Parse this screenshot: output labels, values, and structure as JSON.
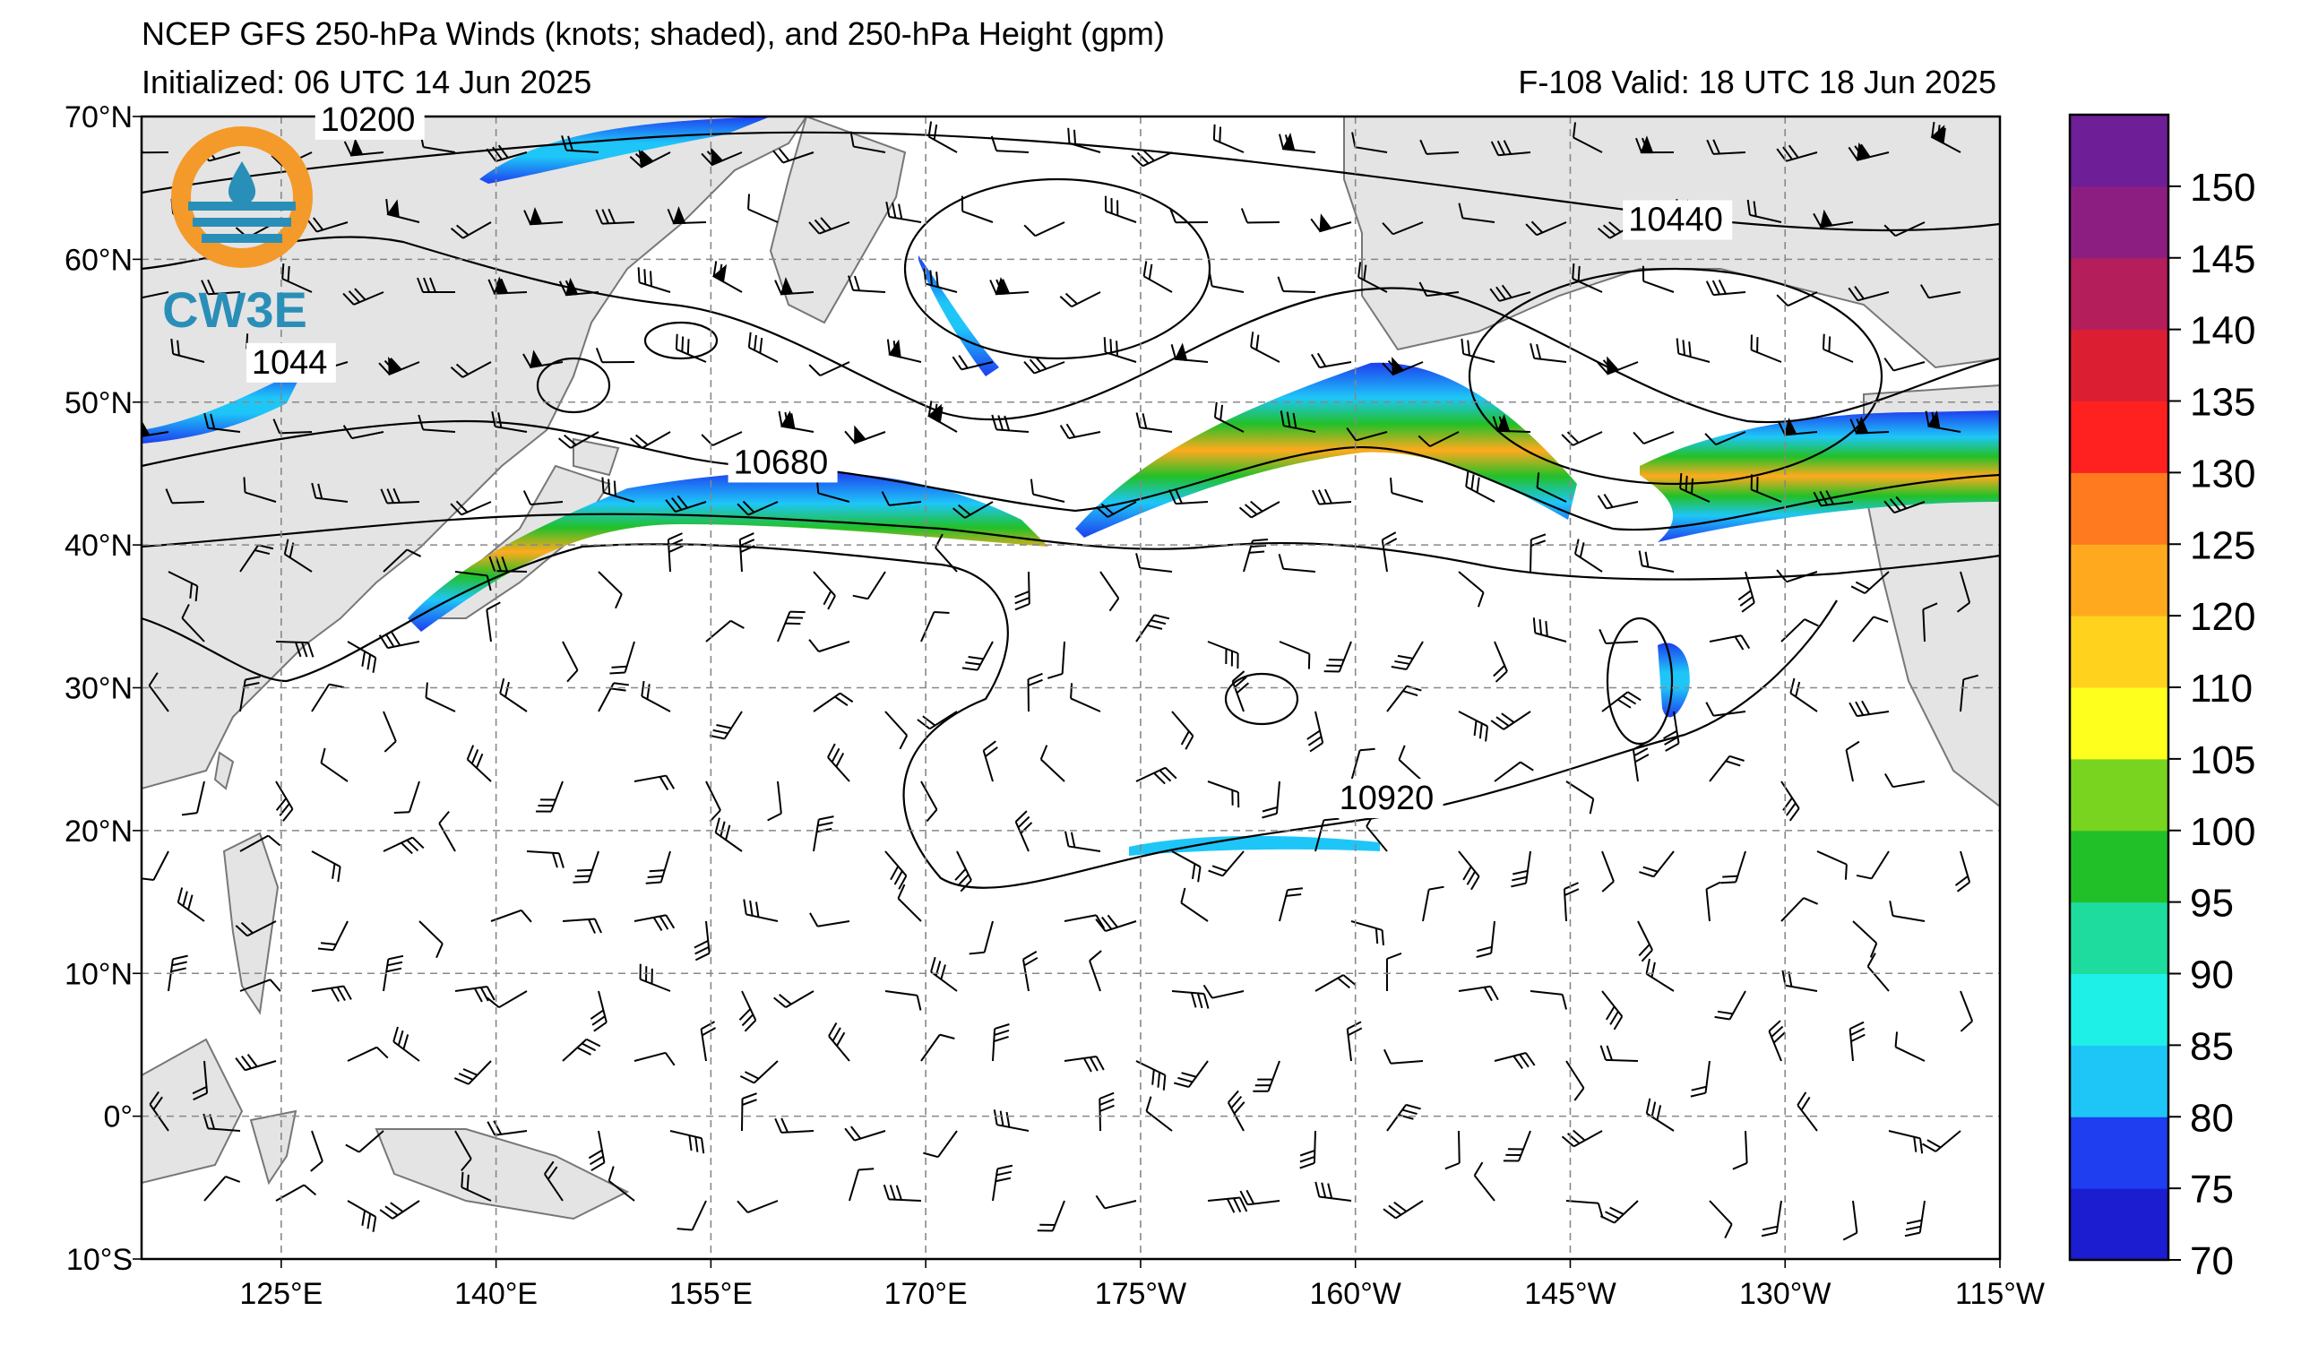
{
  "header": {
    "title": "NCEP GFS 250-hPa Winds (knots; shaded), and 250-hPa Height (gpm)",
    "initialized": "Initialized: 06 UTC 14 Jun 2025",
    "valid": "F-108  Valid: 18 UTC 18 Jun 2025"
  },
  "logo": {
    "text": "CW3E",
    "colors": {
      "ring": "#f39a2a",
      "wave": "#2a8fb8",
      "text": "#2a8fb8"
    }
  },
  "map": {
    "projection": "cylindrical",
    "lat_range": [
      -10,
      70
    ],
    "lon_range_east": [
      110,
      245
    ],
    "lat_ticks": [
      "70°N",
      "60°N",
      "50°N",
      "40°N",
      "30°N",
      "20°N",
      "10°N",
      "0°",
      "10°S"
    ],
    "lon_ticks": [
      "125°E",
      "140°E",
      "155°E",
      "170°E",
      "175°W",
      "160°W",
      "145°W",
      "130°W",
      "115°W"
    ],
    "contour_labels": [
      {
        "text": "10200",
        "lon": 123,
        "lat": 69
      },
      {
        "text": "1044",
        "lon": 118,
        "lat": 52
      },
      {
        "text": "10680",
        "lon": 153,
        "lat": 45
      },
      {
        "text": "10440",
        "lon": 218,
        "lat": 62
      },
      {
        "text": "10920",
        "lon": 197,
        "lat": 21.5
      }
    ],
    "land_color": "#e4e4e4",
    "grid_style": "dashed gray"
  },
  "colorbar": {
    "levels": [
      70,
      75,
      80,
      85,
      90,
      95,
      100,
      105,
      110,
      120,
      125,
      130,
      135,
      140,
      145,
      150
    ],
    "labels": [
      "70",
      "75",
      "80",
      "85",
      "90",
      "95",
      "100",
      "105",
      "110",
      "120",
      "125",
      "130",
      "135",
      "140",
      "145",
      "150"
    ],
    "colors": [
      "#1c1cd0",
      "#1e3ef0",
      "#1ec6f8",
      "#1ef0e8",
      "#1edc9e",
      "#22c028",
      "#78d41e",
      "#ffff1e",
      "#ffd21e",
      "#ffaa1e",
      "#ff7a1e",
      "#ff2020",
      "#dc1e32",
      "#b41e5a",
      "#8c1e82",
      "#6e1e96"
    ]
  },
  "chart_data": {
    "type": "heatmap",
    "title": "NCEP GFS 250-hPa Winds (knots; shaded), and 250-hPa Height (gpm)",
    "jet_streaks_approx": [
      {
        "lon_range": [
          143,
          184
        ],
        "lat_center": 43,
        "max_kt": 125
      },
      {
        "lon_range": [
          188,
          233
        ],
        "lat_center": 46,
        "max_kt": 120
      },
      {
        "lon_range": [
          231,
          245
        ],
        "lat_center": 45,
        "max_kt": 125
      },
      {
        "lon_range": [
          133,
          162
        ],
        "lat_center": 67,
        "max_kt": 90
      }
    ],
    "height_contours_gpm": [
      10200,
      10440,
      10680,
      10920
    ]
  }
}
